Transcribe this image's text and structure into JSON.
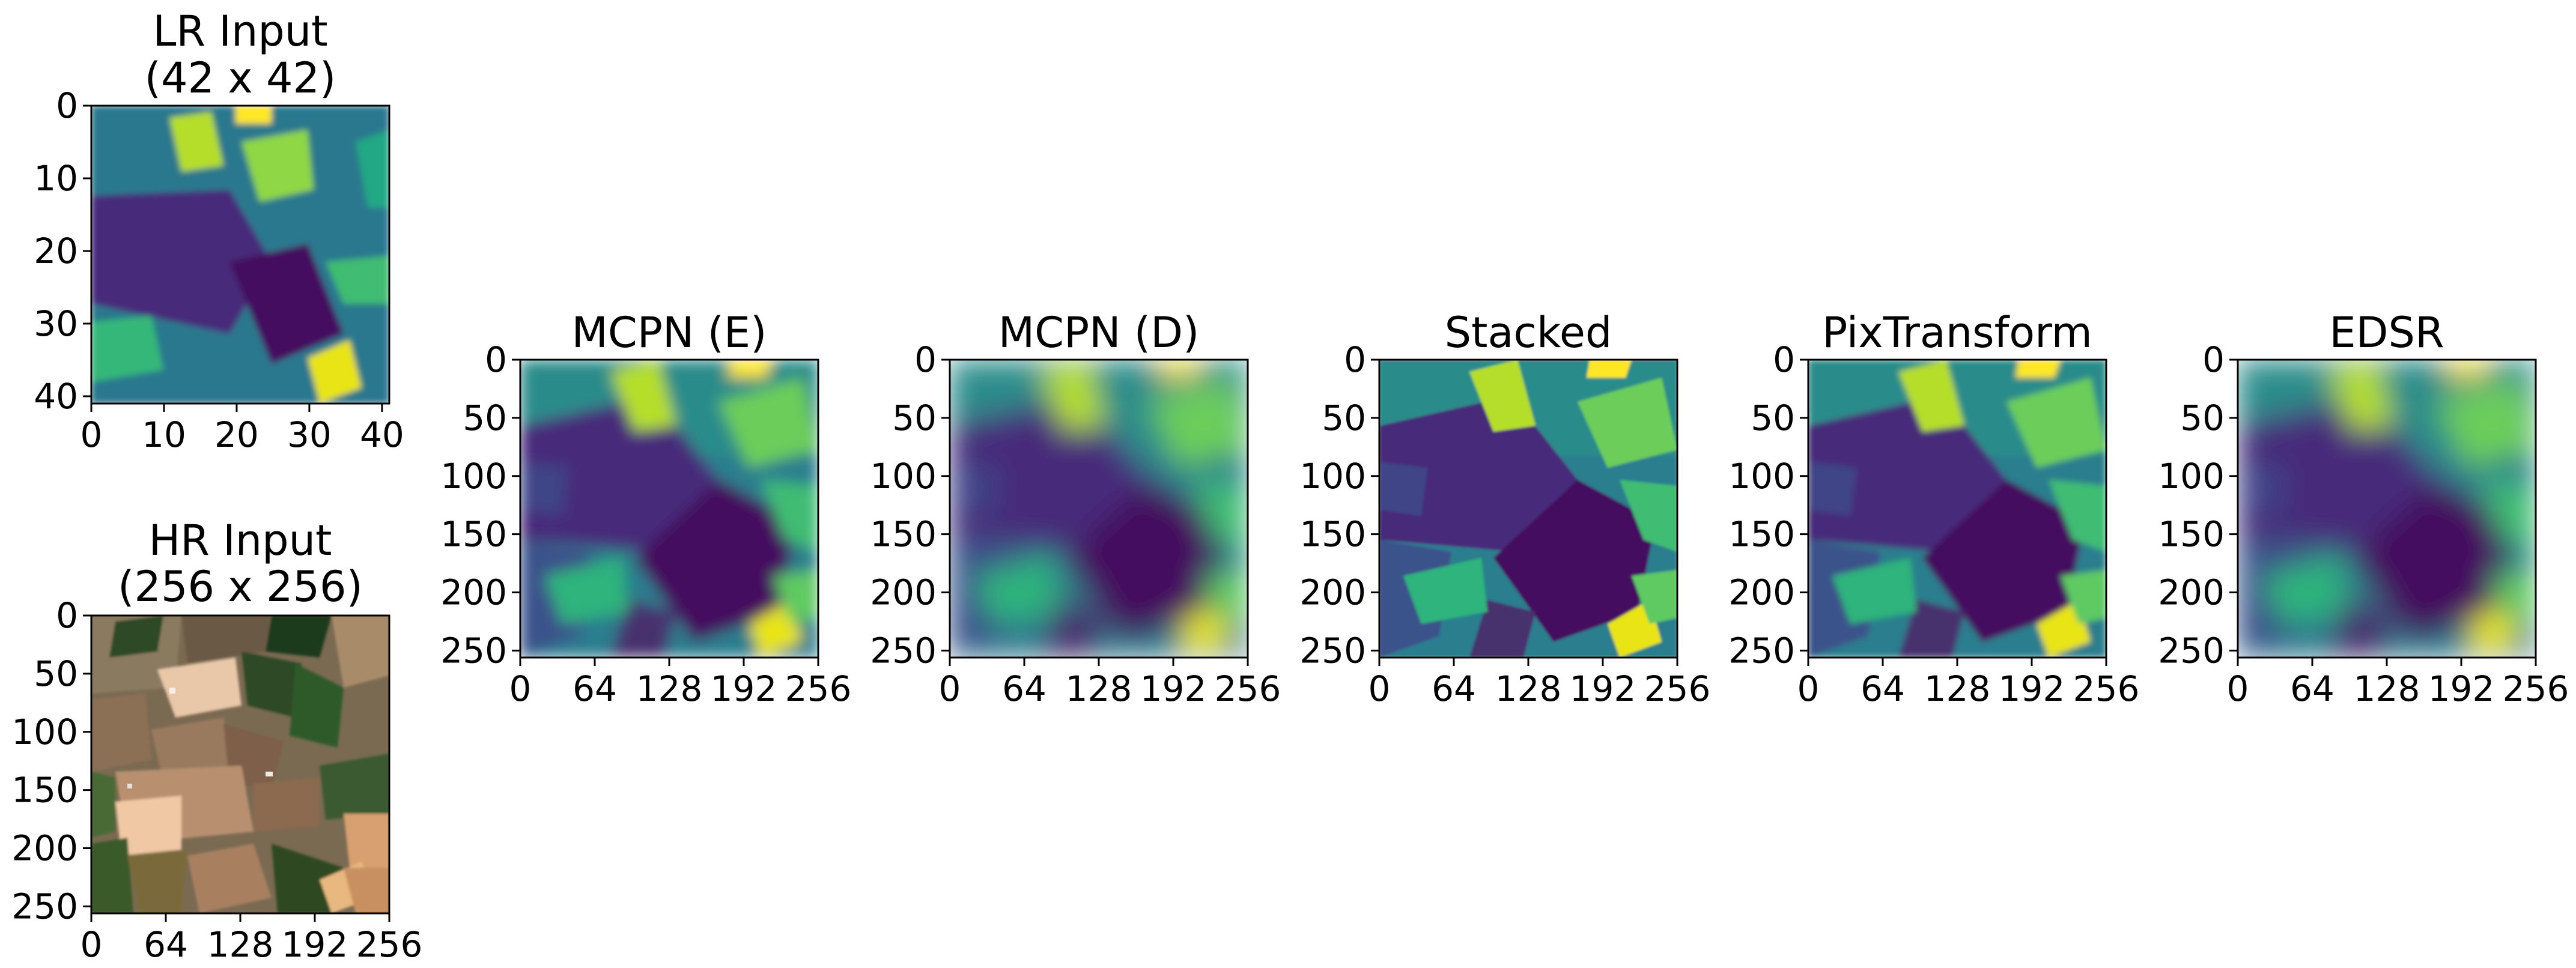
{
  "figure": {
    "panels": [
      {
        "id": "lr-input",
        "title_lines": [
          "LR Input",
          "(42 x 42)"
        ],
        "image": "low-resolution viridis heatmap",
        "xticks": [
          "0",
          "10",
          "20",
          "30",
          "40"
        ],
        "yticks": [
          "0",
          "10",
          "20",
          "30",
          "40"
        ],
        "xlim": [
          0,
          41
        ],
        "ylim": [
          41,
          0
        ],
        "tick_values": [
          0,
          10,
          20,
          30,
          40
        ],
        "colormap": "viridis"
      },
      {
        "id": "hr-input",
        "title_lines": [
          "HR Input",
          "(256 x 256)"
        ],
        "image": "RGB satellite image of agricultural fields",
        "xticks": [
          "0",
          "64",
          "128",
          "192",
          "256"
        ],
        "yticks": [
          "0",
          "50",
          "100",
          "150",
          "200",
          "250"
        ],
        "xlim": [
          0,
          256
        ],
        "ylim": [
          256,
          0
        ],
        "xtick_values": [
          0,
          64,
          128,
          192,
          256
        ],
        "ytick_values": [
          0,
          50,
          100,
          150,
          200,
          250
        ]
      },
      {
        "id": "mcpn-e",
        "title_lines": [
          "MCPN (E)"
        ],
        "image": "super-resolved viridis heatmap",
        "xticks": [
          "0",
          "64",
          "128",
          "192",
          "256"
        ],
        "yticks": [
          "0",
          "50",
          "100",
          "150",
          "200",
          "250"
        ],
        "xlim": [
          0,
          256
        ],
        "ylim": [
          256,
          0
        ],
        "xtick_values": [
          0,
          64,
          128,
          192,
          256
        ],
        "ytick_values": [
          0,
          50,
          100,
          150,
          200,
          250
        ],
        "colormap": "viridis"
      },
      {
        "id": "mcpn-d",
        "title_lines": [
          "MCPN (D)"
        ],
        "image": "super-resolved viridis heatmap",
        "xticks": [
          "0",
          "64",
          "128",
          "192",
          "256"
        ],
        "yticks": [
          "0",
          "50",
          "100",
          "150",
          "200",
          "250"
        ],
        "xlim": [
          0,
          256
        ],
        "ylim": [
          256,
          0
        ],
        "xtick_values": [
          0,
          64,
          128,
          192,
          256
        ],
        "ytick_values": [
          0,
          50,
          100,
          150,
          200,
          250
        ],
        "colormap": "viridis"
      },
      {
        "id": "stacked",
        "title_lines": [
          "Stacked"
        ],
        "image": "super-resolved viridis heatmap",
        "xticks": [
          "0",
          "64",
          "128",
          "192",
          "256"
        ],
        "yticks": [
          "0",
          "50",
          "100",
          "150",
          "200",
          "250"
        ],
        "xlim": [
          0,
          256
        ],
        "ylim": [
          256,
          0
        ],
        "xtick_values": [
          0,
          64,
          128,
          192,
          256
        ],
        "ytick_values": [
          0,
          50,
          100,
          150,
          200,
          250
        ],
        "colormap": "viridis"
      },
      {
        "id": "pixtransform",
        "title_lines": [
          "PixTransform"
        ],
        "image": "super-resolved viridis heatmap",
        "xticks": [
          "0",
          "64",
          "128",
          "192",
          "256"
        ],
        "yticks": [
          "0",
          "50",
          "100",
          "150",
          "200",
          "250"
        ],
        "xlim": [
          0,
          256
        ],
        "ylim": [
          256,
          0
        ],
        "xtick_values": [
          0,
          64,
          128,
          192,
          256
        ],
        "ytick_values": [
          0,
          50,
          100,
          150,
          200,
          250
        ],
        "colormap": "viridis"
      },
      {
        "id": "edsr",
        "title_lines": [
          "EDSR"
        ],
        "image": "super-resolved viridis heatmap",
        "xticks": [
          "0",
          "64",
          "128",
          "192",
          "256"
        ],
        "yticks": [
          "0",
          "50",
          "100",
          "150",
          "200",
          "250"
        ],
        "xlim": [
          0,
          256
        ],
        "ylim": [
          256,
          0
        ],
        "xtick_values": [
          0,
          64,
          128,
          192,
          256
        ],
        "ytick_values": [
          0,
          50,
          100,
          150,
          200,
          250
        ],
        "colormap": "viridis"
      }
    ]
  }
}
